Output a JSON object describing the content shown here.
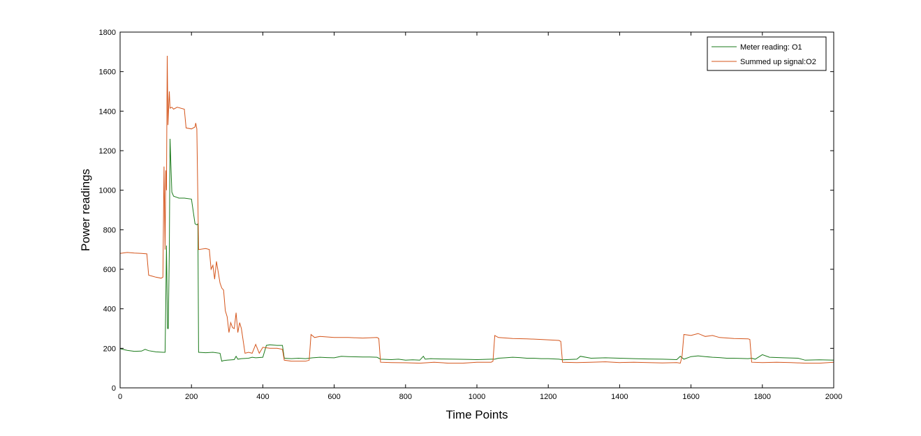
{
  "chart_data": {
    "type": "line",
    "title": "",
    "xlabel": "Time Points",
    "ylabel": "Power readings",
    "xlim": [
      0,
      2000
    ],
    "ylim": [
      0,
      1800
    ],
    "xticks": [
      0,
      200,
      400,
      600,
      800,
      1000,
      1200,
      1400,
      1600,
      1800,
      2000
    ],
    "yticks": [
      0,
      200,
      400,
      600,
      800,
      1000,
      1200,
      1400,
      1600,
      1800
    ],
    "grid": false,
    "legend_position": "top-right",
    "series": [
      {
        "name": "Meter reading: O1",
        "color": "#1a7a1a",
        "x": [
          0,
          20,
          40,
          60,
          70,
          80,
          100,
          120,
          124,
          126,
          128,
          130,
          133,
          135,
          138,
          140,
          145,
          150,
          165,
          180,
          200,
          210,
          215,
          218,
          220,
          240,
          260,
          280,
          285,
          290,
          300,
          320,
          325,
          330,
          340,
          360,
          370,
          380,
          400,
          410,
          420,
          440,
          455,
          460,
          480,
          500,
          520,
          540,
          560,
          580,
          600,
          620,
          640,
          660,
          680,
          700,
          720,
          725,
          730,
          760,
          780,
          800,
          820,
          840,
          850,
          855,
          870,
          900,
          940,
          980,
          1000,
          1040,
          1050,
          1060,
          1080,
          1100,
          1120,
          1140,
          1160,
          1180,
          1200,
          1230,
          1240,
          1280,
          1290,
          1320,
          1360,
          1400,
          1440,
          1480,
          1520,
          1560,
          1570,
          1580,
          1600,
          1620,
          1640,
          1660,
          1680,
          1700,
          1720,
          1760,
          1770,
          1780,
          1800,
          1820,
          1860,
          1900,
          1920,
          1960,
          2000
        ],
        "y": [
          198,
          190,
          185,
          186,
          195,
          188,
          182,
          180,
          180,
          180,
          420,
          720,
          300,
          300,
          700,
          1260,
          990,
          970,
          960,
          960,
          955,
          830,
          825,
          830,
          180,
          178,
          180,
          175,
          135,
          138,
          140,
          143,
          160,
          145,
          148,
          150,
          155,
          152,
          155,
          215,
          218,
          215,
          215,
          150,
          148,
          150,
          148,
          152,
          155,
          153,
          152,
          160,
          158,
          157,
          156,
          156,
          155,
          150,
          145,
          143,
          145,
          140,
          142,
          140,
          160,
          145,
          148,
          146,
          145,
          144,
          143,
          145,
          145,
          150,
          152,
          155,
          153,
          150,
          150,
          148,
          148,
          145,
          142,
          145,
          160,
          150,
          152,
          150,
          148,
          146,
          145,
          143,
          160,
          145,
          158,
          162,
          158,
          155,
          153,
          150,
          150,
          148,
          150,
          145,
          168,
          155,
          152,
          150,
          140,
          142,
          140
        ]
      },
      {
        "name": "Summed up signal:O2",
        "color": "#d4541a",
        "x": [
          0,
          20,
          40,
          60,
          75,
          80,
          90,
          100,
          115,
          120,
          123,
          126,
          128,
          130,
          132,
          134,
          136,
          138,
          140,
          145,
          150,
          160,
          180,
          185,
          200,
          210,
          212,
          215,
          220,
          240,
          250,
          255,
          260,
          265,
          270,
          280,
          285,
          290,
          295,
          300,
          305,
          310,
          315,
          320,
          325,
          330,
          335,
          340,
          350,
          360,
          370,
          380,
          390,
          400,
          420,
          440,
          455,
          460,
          480,
          500,
          520,
          530,
          535,
          545,
          560,
          600,
          640,
          680,
          720,
          725,
          730,
          760,
          800,
          840,
          880,
          920,
          960,
          1000,
          1040,
          1045,
          1050,
          1060,
          1100,
          1140,
          1180,
          1230,
          1235,
          1240,
          1280,
          1320,
          1360,
          1400,
          1440,
          1480,
          1520,
          1560,
          1570,
          1575,
          1580,
          1600,
          1620,
          1640,
          1660,
          1680,
          1720,
          1760,
          1765,
          1770,
          1800,
          1840,
          1880,
          1920,
          1960,
          2000
        ],
        "y": [
          680,
          685,
          682,
          680,
          678,
          570,
          565,
          560,
          555,
          560,
          1120,
          700,
          1100,
          1000,
          1680,
          1330,
          1420,
          1500,
          1415,
          1420,
          1410,
          1420,
          1410,
          1315,
          1310,
          1320,
          1340,
          1310,
          700,
          705,
          700,
          600,
          620,
          550,
          640,
          530,
          505,
          495,
          390,
          360,
          280,
          330,
          305,
          300,
          380,
          280,
          330,
          300,
          175,
          180,
          175,
          220,
          175,
          205,
          200,
          200,
          195,
          140,
          135,
          135,
          135,
          140,
          270,
          255,
          260,
          255,
          255,
          252,
          255,
          250,
          130,
          128,
          127,
          125,
          130,
          125,
          125,
          130,
          130,
          135,
          265,
          255,
          250,
          248,
          245,
          240,
          235,
          130,
          128,
          130,
          132,
          128,
          130,
          128,
          126,
          128,
          125,
          160,
          270,
          265,
          275,
          260,
          265,
          255,
          250,
          248,
          245,
          130,
          128,
          130,
          128,
          125,
          125,
          130
        ]
      }
    ]
  }
}
